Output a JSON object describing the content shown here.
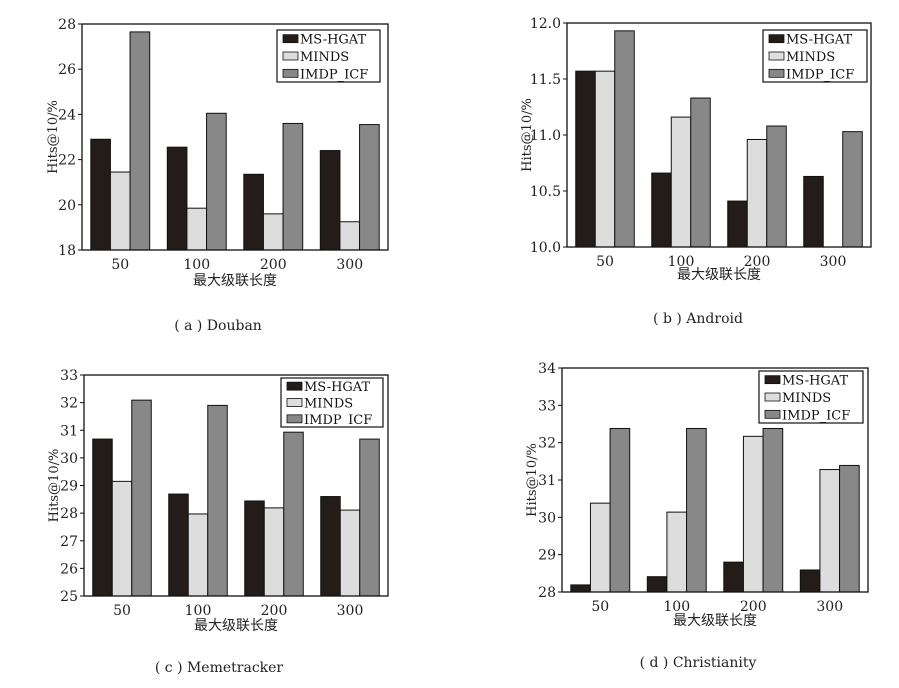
{
  "colors": {
    "MS-HGAT": "#231c19",
    "MINDS": "#dcdddc",
    "IMDP_ICF": "#888888",
    "outline": "#111111"
  },
  "chart_data": [
    {
      "type": "bar",
      "caption": "( a ) Douban",
      "xlabel": "最大级联长度",
      "ylabel": "Hits@10/%",
      "categories": [
        "50",
        "100",
        "200",
        "300"
      ],
      "ylim": [
        18,
        28
      ],
      "yticks": [
        "18",
        "20",
        "22",
        "24",
        "26",
        "28"
      ],
      "ytick_values": [
        18,
        20,
        22,
        24,
        26,
        28
      ],
      "legend": [
        "MS-HGAT",
        "MINDS",
        "IMDP_ICF"
      ],
      "legend_position": "top-right",
      "series": [
        {
          "name": "MS-HGAT",
          "values": [
            22.9,
            22.55,
            21.35,
            22.4
          ]
        },
        {
          "name": "MINDS",
          "values": [
            21.45,
            19.85,
            19.6,
            19.25
          ]
        },
        {
          "name": "IMDP_ICF",
          "values": [
            27.65,
            24.05,
            23.6,
            23.55
          ]
        }
      ]
    },
    {
      "type": "bar",
      "caption": "( b ) Android",
      "xlabel": "最大级联长度",
      "ylabel": "Hits@10/%",
      "categories": [
        "50",
        "100",
        "200",
        "300"
      ],
      "ylim": [
        10.0,
        12.0
      ],
      "yticks": [
        "10.0",
        "10.5",
        "11.0",
        "11.5",
        "12.0"
      ],
      "ytick_values": [
        10.0,
        10.5,
        11.0,
        11.5,
        12.0
      ],
      "legend": [
        "MS-HGAT",
        "MINDS",
        "IMDP_ICF"
      ],
      "legend_position": "top-right",
      "series": [
        {
          "name": "MS-HGAT",
          "values": [
            11.57,
            10.66,
            10.41,
            10.63
          ]
        },
        {
          "name": "MINDS",
          "values": [
            11.57,
            11.16,
            10.96,
            null
          ]
        },
        {
          "name": "IMDP_ICF",
          "values": [
            11.93,
            11.33,
            11.08,
            11.03
          ]
        }
      ]
    },
    {
      "type": "bar",
      "caption": "( c ) Memetracker",
      "xlabel": "最大级联长度",
      "ylabel": "Hits@10/%",
      "categories": [
        "50",
        "100",
        "200",
        "300"
      ],
      "ylim": [
        25,
        33
      ],
      "yticks": [
        "25",
        "26",
        "27",
        "28",
        "29",
        "30",
        "31",
        "32",
        "33"
      ],
      "ytick_values": [
        25,
        26,
        27,
        28,
        29,
        30,
        31,
        32,
        33
      ],
      "legend": [
        "MS-HGAT",
        "MINDS",
        "IMDP_ICF"
      ],
      "legend_position": "top-right",
      "series": [
        {
          "name": "MS-HGAT",
          "values": [
            30.68,
            28.69,
            28.44,
            28.6
          ]
        },
        {
          "name": "MINDS",
          "values": [
            29.15,
            27.97,
            28.19,
            28.11
          ]
        },
        {
          "name": "IMDP_ICF",
          "values": [
            32.09,
            31.9,
            30.93,
            30.68
          ]
        }
      ]
    },
    {
      "type": "bar",
      "caption": "( d ) Christianity",
      "xlabel": "最大级联长度",
      "ylabel": "Hits@10/%",
      "categories": [
        "50",
        "100",
        "200",
        "300"
      ],
      "ylim": [
        28,
        34
      ],
      "yticks": [
        "28",
        "29",
        "30",
        "31",
        "32",
        "33",
        "34"
      ],
      "ytick_values": [
        28,
        29,
        30,
        31,
        32,
        33,
        34
      ],
      "legend": [
        "MS-HGAT",
        "MINDS",
        "IMDP_ICF"
      ],
      "legend_position": "top-right",
      "series": [
        {
          "name": "MS-HGAT",
          "values": [
            28.19,
            28.41,
            28.8,
            28.59
          ]
        },
        {
          "name": "MINDS",
          "values": [
            30.38,
            30.14,
            32.17,
            31.28
          ]
        },
        {
          "name": "IMDP_ICF",
          "values": [
            32.38,
            32.38,
            32.38,
            31.39
          ]
        }
      ]
    }
  ]
}
